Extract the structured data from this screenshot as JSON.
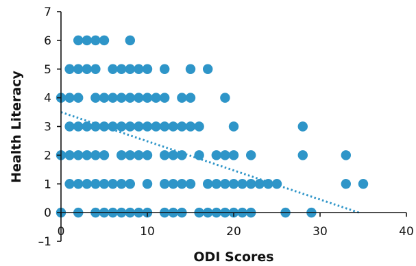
{
  "chart_data": {
    "type": "scatter",
    "xlabel": "ODI Scores",
    "ylabel": "Health Literacy",
    "xlim": [
      0,
      40
    ],
    "ylim": [
      -1,
      7
    ],
    "x_ticks": [
      "0",
      "10",
      "20",
      "30",
      "40"
    ],
    "y_ticks": [
      "–1",
      "0",
      "1",
      "2",
      "3",
      "4",
      "5",
      "6",
      "7"
    ],
    "grid": false,
    "legend": "none",
    "colors": {
      "points": "#2e95c8",
      "trendline": "#2e95c8",
      "axis": "#111111"
    },
    "trendline": {
      "style": "dotted",
      "from": [
        0,
        3.5
      ],
      "to": [
        34.5,
        0
      ]
    },
    "series": [
      {
        "points": [
          [
            0,
            0
          ],
          [
            2,
            0
          ],
          [
            4,
            0
          ],
          [
            5,
            0
          ],
          [
            6,
            0
          ],
          [
            7,
            0
          ],
          [
            8,
            0
          ],
          [
            9,
            0
          ],
          [
            10,
            0
          ],
          [
            12,
            0
          ],
          [
            13,
            0
          ],
          [
            14,
            0
          ],
          [
            16,
            0
          ],
          [
            17,
            0
          ],
          [
            18,
            0
          ],
          [
            19,
            0
          ],
          [
            20,
            0
          ],
          [
            21,
            0
          ],
          [
            22,
            0
          ],
          [
            26,
            0
          ],
          [
            29,
            0
          ],
          [
            1,
            1
          ],
          [
            2,
            1
          ],
          [
            3,
            1
          ],
          [
            4,
            1
          ],
          [
            5,
            1
          ],
          [
            6,
            1
          ],
          [
            7,
            1
          ],
          [
            8,
            1
          ],
          [
            10,
            1
          ],
          [
            12,
            1
          ],
          [
            13,
            1
          ],
          [
            14,
            1
          ],
          [
            15,
            1
          ],
          [
            17,
            1
          ],
          [
            18,
            1
          ],
          [
            19,
            1
          ],
          [
            20,
            1
          ],
          [
            21,
            1
          ],
          [
            22,
            1
          ],
          [
            23,
            1
          ],
          [
            24,
            1
          ],
          [
            25,
            1
          ],
          [
            33,
            1
          ],
          [
            35,
            1
          ],
          [
            0,
            2
          ],
          [
            1,
            2
          ],
          [
            2,
            2
          ],
          [
            3,
            2
          ],
          [
            4,
            2
          ],
          [
            5,
            2
          ],
          [
            7,
            2
          ],
          [
            8,
            2
          ],
          [
            9,
            2
          ],
          [
            10,
            2
          ],
          [
            12,
            2
          ],
          [
            13,
            2
          ],
          [
            14,
            2
          ],
          [
            16,
            2
          ],
          [
            18,
            2
          ],
          [
            19,
            2
          ],
          [
            20,
            2
          ],
          [
            22,
            2
          ],
          [
            28,
            2
          ],
          [
            33,
            2
          ],
          [
            1,
            3
          ],
          [
            2,
            3
          ],
          [
            3,
            3
          ],
          [
            4,
            3
          ],
          [
            5,
            3
          ],
          [
            6,
            3
          ],
          [
            7,
            3
          ],
          [
            8,
            3
          ],
          [
            9,
            3
          ],
          [
            10,
            3
          ],
          [
            11,
            3
          ],
          [
            12,
            3
          ],
          [
            13,
            3
          ],
          [
            14,
            3
          ],
          [
            15,
            3
          ],
          [
            16,
            3
          ],
          [
            20,
            3
          ],
          [
            28,
            3
          ],
          [
            0,
            4
          ],
          [
            1,
            4
          ],
          [
            2,
            4
          ],
          [
            4,
            4
          ],
          [
            5,
            4
          ],
          [
            6,
            4
          ],
          [
            7,
            4
          ],
          [
            8,
            4
          ],
          [
            9,
            4
          ],
          [
            10,
            4
          ],
          [
            11,
            4
          ],
          [
            12,
            4
          ],
          [
            14,
            4
          ],
          [
            15,
            4
          ],
          [
            19,
            4
          ],
          [
            1,
            5
          ],
          [
            2,
            5
          ],
          [
            3,
            5
          ],
          [
            4,
            5
          ],
          [
            6,
            5
          ],
          [
            7,
            5
          ],
          [
            8,
            5
          ],
          [
            9,
            5
          ],
          [
            10,
            5
          ],
          [
            12,
            5
          ],
          [
            15,
            5
          ],
          [
            17,
            5
          ],
          [
            2,
            6
          ],
          [
            3,
            6
          ],
          [
            4,
            6
          ],
          [
            5,
            6
          ],
          [
            8,
            6
          ]
        ]
      }
    ]
  }
}
